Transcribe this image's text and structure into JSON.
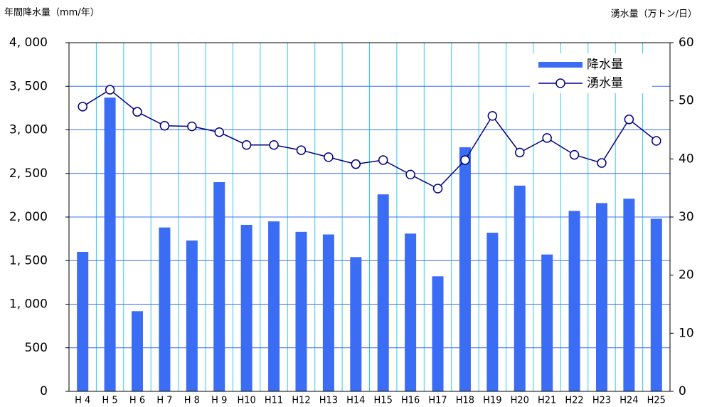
{
  "chart_data": {
    "type": "bar_line",
    "y_label": "年間降水量（mm/年）",
    "y2_label": "湧水量（万トン/日）",
    "categories": [
      "H 4",
      "H 5",
      "H 6",
      "H 7",
      "H 8",
      "H 9",
      "H10",
      "H11",
      "H12",
      "H13",
      "H14",
      "H15",
      "H16",
      "H17",
      "H18",
      "H19",
      "H20",
      "H21",
      "H22",
      "H23",
      "H24",
      "H25"
    ],
    "series": [
      {
        "name": "降水量",
        "type": "bar",
        "axis": "y",
        "color": "#3a6cf4",
        "values": [
          1600,
          3370,
          920,
          1880,
          1730,
          2400,
          1910,
          1950,
          1830,
          1800,
          1540,
          2260,
          1810,
          1320,
          2800,
          1820,
          2360,
          1570,
          2070,
          2160,
          2210,
          1980
        ]
      },
      {
        "name": "湧水量",
        "type": "line",
        "axis": "y2",
        "color": "#000080",
        "values": [
          49.0,
          51.9,
          48.1,
          45.7,
          45.6,
          44.6,
          42.4,
          42.4,
          41.5,
          40.3,
          39.1,
          39.8,
          37.3,
          34.9,
          39.8,
          47.4,
          41.1,
          43.6,
          40.7,
          39.3,
          46.8,
          43.1
        ]
      }
    ],
    "ylim": [
      0,
      4000
    ],
    "yticks": [
      0,
      500,
      {
        "value": 1000,
        "label": "1, 000"
      },
      {
        "value": 1500,
        "label": "1, 500"
      },
      {
        "value": 2000,
        "label": "2, 000"
      },
      {
        "value": 2500,
        "label": "2, 500"
      },
      {
        "value": 3000,
        "label": "3, 000"
      },
      {
        "value": 3500,
        "label": "3, 500"
      },
      {
        "value": 4000,
        "label": "4, 000"
      }
    ],
    "y2lim": [
      0,
      60
    ],
    "y2ticks": [
      0,
      10,
      20,
      30,
      40,
      50,
      60
    ],
    "grid": true,
    "legend": "upper right"
  }
}
